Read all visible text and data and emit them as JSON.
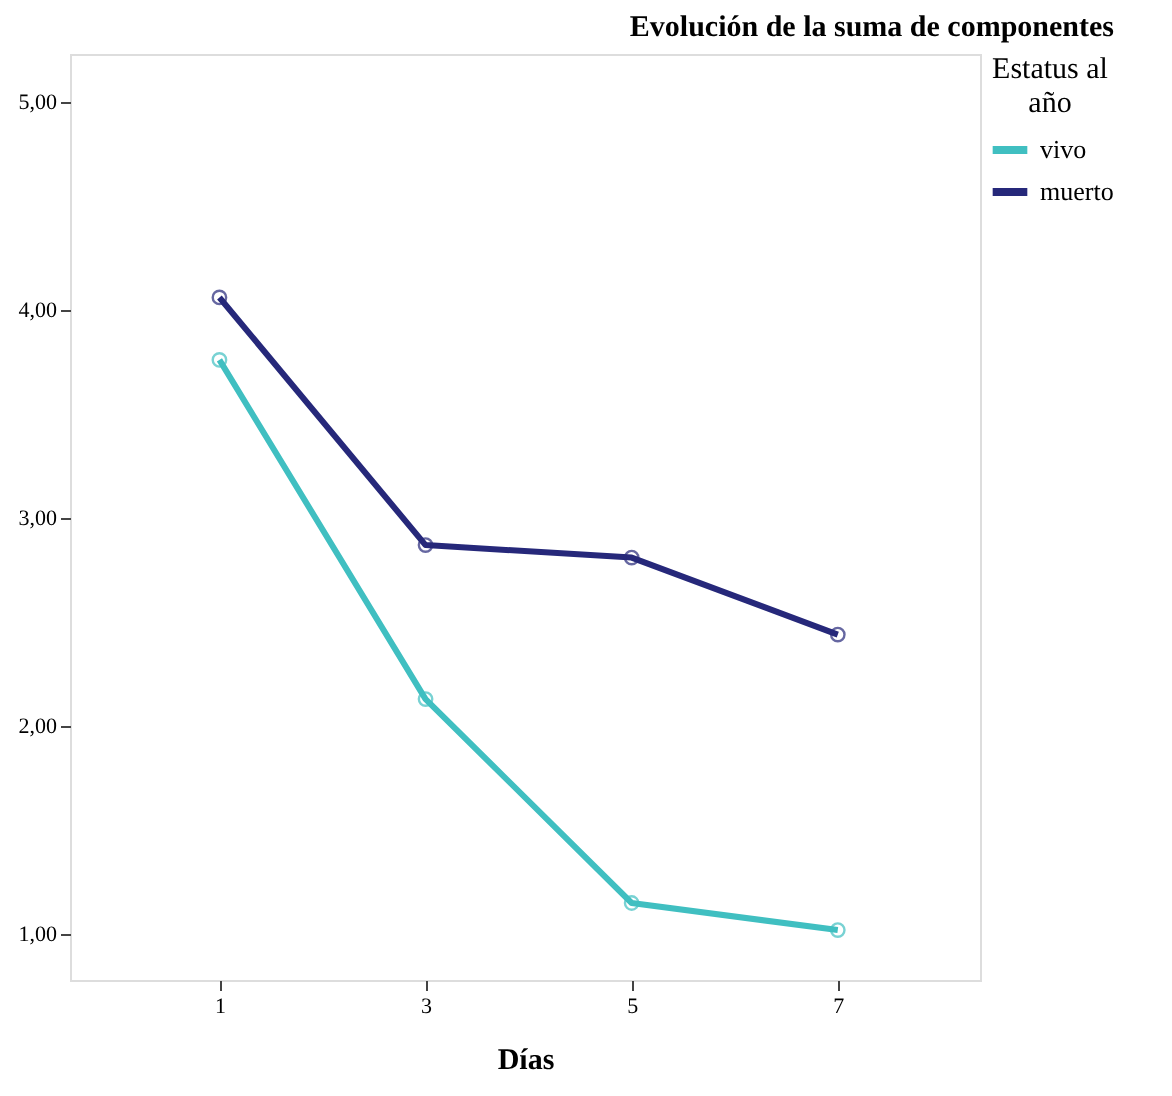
{
  "chart_data": {
    "type": "line",
    "title": "Evolución de la suma de componentes",
    "xlabel": "Días",
    "legend_title": "Estatus al año",
    "legend": "top right",
    "grid": false,
    "marker": "circle",
    "line_style": "solid",
    "x": [
      1,
      3,
      5,
      7
    ],
    "xlim": [
      -0.45,
      8.38
    ],
    "xticks": [
      1,
      3,
      5,
      7
    ],
    "ylim": [
      0.78,
      5.23
    ],
    "yticks": [
      {
        "value": 1,
        "label": "1,00"
      },
      {
        "value": 2,
        "label": "2,00"
      },
      {
        "value": 3,
        "label": "3,00"
      },
      {
        "value": 4,
        "label": "4,00"
      },
      {
        "value": 5,
        "label": "5,00"
      }
    ],
    "series": [
      {
        "name": "vivo",
        "color": "#40bfc1",
        "values": [
          3.76,
          2.13,
          1.15,
          1.02
        ]
      },
      {
        "name": "muerto",
        "color": "#26287a",
        "values": [
          4.06,
          2.87,
          2.81,
          2.44
        ]
      }
    ]
  }
}
